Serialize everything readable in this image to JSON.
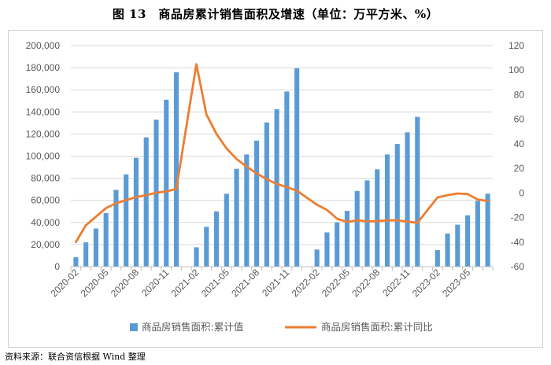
{
  "title": "图 13　商品房累计销售面积及增速（单位：万平方米、%）",
  "source": "资料来源：联合资信根据 Wind 整理",
  "chart_data": {
    "type": "bar+line",
    "x": [
      "2020-02",
      "2020-03",
      "2020-04",
      "2020-05",
      "2020-06",
      "2020-07",
      "2020-08",
      "2020-09",
      "2020-10",
      "2020-11",
      "2020-12",
      "2021-01",
      "2021-02",
      "2021-03",
      "2021-04",
      "2021-05",
      "2021-06",
      "2021-07",
      "2021-08",
      "2021-09",
      "2021-10",
      "2021-11",
      "2021-12",
      "2022-01",
      "2022-02",
      "2022-03",
      "2022-04",
      "2022-05",
      "2022-06",
      "2022-07",
      "2022-08",
      "2022-09",
      "2022-10",
      "2022-11",
      "2022-12",
      "2023-01",
      "2023-02",
      "2023-03",
      "2023-04",
      "2023-05",
      "2023-06",
      "2023-07"
    ],
    "x_tick_labels": [
      "2020-02",
      "2020-05",
      "2020-08",
      "2020-11",
      "2021-02",
      "2021-05",
      "2021-08",
      "2021-11",
      "2022-02",
      "2022-05",
      "2022-08",
      "2022-11",
      "2023-02",
      "2023-05"
    ],
    "y_left": {
      "min": 0,
      "max": 200000,
      "step": 20000
    },
    "y_right": {
      "min": -60,
      "max": 120,
      "step": 20
    },
    "series": [
      {
        "name": "商品房销售面积:累计值",
        "kind": "bar",
        "axis": "left",
        "color": "#5b9bd5",
        "values": [
          8500,
          22000,
          34500,
          48500,
          69500,
          83500,
          98500,
          117000,
          133000,
          151000,
          176000,
          null,
          17500,
          36000,
          50000,
          66000,
          88500,
          101500,
          114000,
          130500,
          142500,
          158500,
          179500,
          null,
          15500,
          31000,
          40000,
          50500,
          68500,
          78000,
          88000,
          101500,
          111000,
          121500,
          135500,
          null,
          15000,
          30000,
          38000,
          46500,
          59500,
          66000
        ]
      },
      {
        "name": "商品房销售面积:累计同比",
        "kind": "line",
        "axis": "right",
        "color": "#ed7d31",
        "x": [
          "2020-02",
          "2020-03",
          "2020-05",
          "2020-06",
          "2020-07",
          "2020-08",
          "2020-09",
          "2020-10",
          "2020-11",
          "2020-12",
          "2021-02",
          "2021-03",
          "2021-04",
          "2021-05",
          "2021-06",
          "2021-07",
          "2021-08",
          "2021-09",
          "2021-10",
          "2021-11",
          "2021-12",
          "2022-02",
          "2022-03",
          "2022-04",
          "2022-05",
          "2022-06",
          "2022-07",
          "2022-08",
          "2022-09",
          "2022-10",
          "2022-11",
          "2022-12",
          "2023-02",
          "2023-03",
          "2023-04",
          "2023-05",
          "2023-06",
          "2023-07"
        ],
        "values": [
          -39.9,
          -26.3,
          -12.3,
          -8.4,
          -5.8,
          -3.3,
          -1.8,
          0.2,
          1.3,
          3.2,
          104.9,
          63.8,
          48.1,
          36.3,
          27.7,
          21.5,
          15.9,
          11.3,
          7.3,
          4.8,
          1.9,
          -9.6,
          -13.8,
          -20.9,
          -23.6,
          -22.2,
          -23.1,
          -23.0,
          -22.2,
          -22.3,
          -23.3,
          -24.3,
          -3.6,
          -1.8,
          -0.4,
          -0.9,
          -5.3,
          -6.5
        ]
      }
    ],
    "legend": [
      "商品房销售面积:累计值",
      "商品房销售面积:累计同比"
    ],
    "legend_position": "bottom",
    "grid": true
  }
}
